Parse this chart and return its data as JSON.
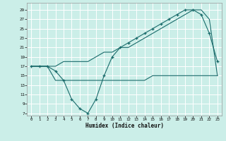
{
  "xlabel": "Humidex (Indice chaleur)",
  "background_color": "#cbeee8",
  "grid_color": "#ffffff",
  "line_color": "#1a6b6b",
  "xlim": [
    -0.5,
    23.5
  ],
  "ylim": [
    6.5,
    30.5
  ],
  "xticks": [
    0,
    1,
    2,
    3,
    4,
    5,
    6,
    7,
    8,
    9,
    10,
    11,
    12,
    13,
    14,
    15,
    16,
    17,
    18,
    19,
    20,
    21,
    22,
    23
  ],
  "yticks": [
    7,
    9,
    11,
    13,
    15,
    17,
    19,
    21,
    23,
    25,
    27,
    29
  ],
  "line1_x": [
    0,
    1,
    2,
    3,
    4,
    5,
    6,
    7,
    8,
    9,
    10,
    11,
    12,
    13,
    14,
    15,
    16,
    17,
    18,
    19,
    20,
    21,
    22,
    23
  ],
  "line1_y": [
    17,
    17,
    17,
    16,
    14,
    10,
    8,
    7,
    10,
    15,
    19,
    21,
    22,
    23,
    24,
    25,
    26,
    27,
    28,
    29,
    29,
    28,
    24,
    18
  ],
  "line2_x": [
    0,
    1,
    2,
    3,
    4,
    5,
    6,
    7,
    8,
    9,
    10,
    11,
    12,
    13,
    14,
    15,
    16,
    17,
    18,
    19,
    20,
    21,
    22,
    23
  ],
  "line2_y": [
    17,
    17,
    17,
    14,
    14,
    14,
    14,
    14,
    14,
    14,
    14,
    14,
    14,
    14,
    14,
    15,
    15,
    15,
    15,
    15,
    15,
    15,
    15,
    15
  ],
  "line3_x": [
    0,
    1,
    2,
    3,
    4,
    5,
    6,
    7,
    8,
    9,
    10,
    11,
    12,
    13,
    14,
    15,
    16,
    17,
    18,
    19,
    20,
    21,
    22,
    23
  ],
  "line3_y": [
    17,
    17,
    17,
    17,
    18,
    18,
    18,
    18,
    19,
    20,
    20,
    21,
    21,
    22,
    23,
    24,
    25,
    26,
    27,
    28,
    29,
    29,
    27,
    15
  ]
}
